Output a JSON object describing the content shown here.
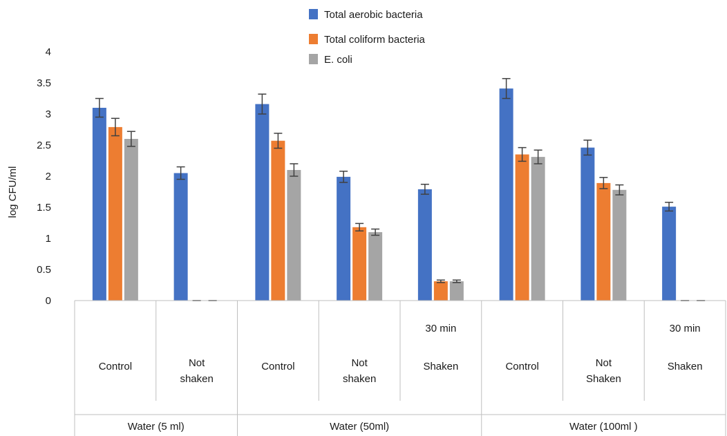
{
  "chart_data": {
    "type": "bar",
    "ylabel": "log CFU/ml",
    "ylim": [
      0,
      4
    ],
    "yticks": [
      "0",
      "0.5",
      "1",
      "1.5",
      "2",
      "2.5",
      "3",
      "3.5",
      "4"
    ],
    "grid": false,
    "legend_position": "top",
    "groups": [
      {
        "label": "Water (5 ml)",
        "subcategories": [
          {
            "lines": [
              "Control"
            ],
            "top": ""
          },
          {
            "lines": [
              "Not",
              "shaken"
            ],
            "top": ""
          }
        ]
      },
      {
        "label": "Water (50ml)",
        "subcategories": [
          {
            "lines": [
              "Control"
            ],
            "top": ""
          },
          {
            "lines": [
              "Not",
              "shaken"
            ],
            "top": ""
          },
          {
            "lines": [
              "Shaken"
            ],
            "top": "30 min"
          }
        ]
      },
      {
        "label": "Water (100ml )",
        "subcategories": [
          {
            "lines": [
              "Control"
            ],
            "top": ""
          },
          {
            "lines": [
              "Not",
              "Shaken"
            ],
            "top": ""
          },
          {
            "lines": [
              "Shaken"
            ],
            "top": "30 min"
          }
        ]
      }
    ],
    "series": [
      {
        "name": "Total aerobic bacteria",
        "color": "#4472c4",
        "values": [
          3.1,
          2.05,
          3.16,
          1.99,
          1.79,
          3.41,
          2.46,
          1.51
        ],
        "errors": [
          0.15,
          0.1,
          0.16,
          0.09,
          0.08,
          0.16,
          0.12,
          0.07
        ]
      },
      {
        "name": "Total coliform bacteria",
        "color": "#ed7d31",
        "values": [
          2.79,
          0,
          2.57,
          1.18,
          0.31,
          2.35,
          1.89,
          0
        ],
        "errors": [
          0.14,
          0,
          0.12,
          0.06,
          0.02,
          0.11,
          0.09,
          0
        ]
      },
      {
        "name": "E. coli",
        "color": "#a5a5a5",
        "values": [
          2.6,
          0,
          2.1,
          1.1,
          0.31,
          2.31,
          1.78,
          0
        ],
        "errors": [
          0.12,
          0,
          0.1,
          0.05,
          0.02,
          0.11,
          0.08,
          0
        ]
      }
    ]
  }
}
